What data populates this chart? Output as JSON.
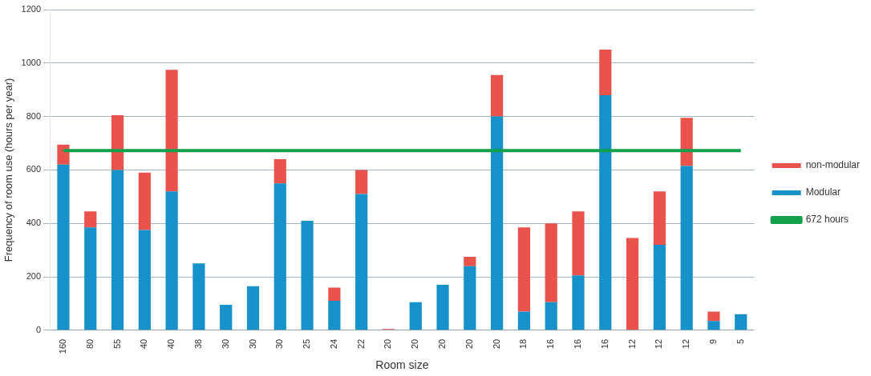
{
  "chart_data": {
    "type": "bar",
    "stacked": true,
    "xlabel": "Room size",
    "ylabel": "Frequency of room use (hours per year)",
    "categories": [
      "160",
      "80",
      "55",
      "40",
      "40",
      "38",
      "30",
      "30",
      "30",
      "25",
      "24",
      "22",
      "20",
      "20",
      "20",
      "20",
      "20",
      "18",
      "16",
      "16",
      "16",
      "12",
      "12",
      "12",
      "9",
      "5"
    ],
    "series": [
      {
        "name": "Modular",
        "color": "#1691c9",
        "values": [
          620,
          385,
          600,
          375,
          520,
          250,
          95,
          165,
          550,
          410,
          110,
          510,
          0,
          105,
          170,
          240,
          800,
          70,
          105,
          205,
          880,
          0,
          320,
          615,
          35,
          60
        ]
      },
      {
        "name": "non-modular",
        "color": "#e9534b",
        "values": [
          75,
          60,
          205,
          215,
          455,
          0,
          0,
          0,
          90,
          0,
          50,
          90,
          5,
          0,
          0,
          35,
          155,
          315,
          295,
          240,
          170,
          345,
          200,
          180,
          35,
          0
        ]
      },
      {
        "name": "672 hours",
        "type": "line",
        "color": "#12a04c",
        "values": [
          672,
          672,
          672,
          672,
          672,
          672,
          672,
          672,
          672,
          672,
          672,
          672,
          672,
          672,
          672,
          672,
          672,
          672,
          672,
          672,
          672,
          672,
          672,
          672,
          672,
          672
        ]
      }
    ],
    "marker": "none",
    "ylim": [
      0,
      1200
    ],
    "yticks": [
      0,
      200,
      400,
      600,
      800,
      1000,
      1200
    ],
    "grid": "y",
    "legend": "right"
  }
}
